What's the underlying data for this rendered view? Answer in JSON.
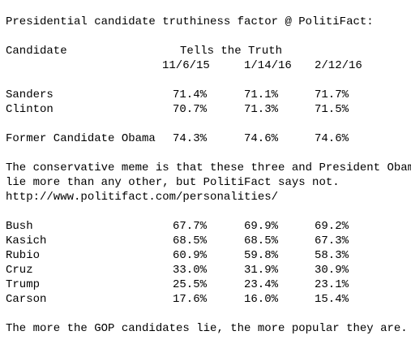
{
  "title": "Presidential candidate truthiness factor @ PolitiFact:",
  "table_header": {
    "candidate": "Candidate",
    "group": "Tells the Truth",
    "dates": [
      "11/6/15",
      "1/14/16",
      "2/12/16"
    ]
  },
  "current": [
    {
      "name": "Sanders",
      "values": [
        "71.4%",
        "71.1%",
        "71.7%"
      ]
    },
    {
      "name": "Clinton",
      "values": [
        "70.7%",
        "71.3%",
        "71.5%"
      ]
    }
  ],
  "former": [
    {
      "name": "Former Candidate Obama",
      "values": [
        "74.3%",
        "74.6%",
        "74.6%"
      ]
    }
  ],
  "note": [
    "The conservative meme is that these three and President Obama",
    "lie more than any other, but PolitiFact says not.",
    "http://www.politifact.com/personalities/"
  ],
  "gop": [
    {
      "name": "Bush",
      "values": [
        "67.7%",
        "69.9%",
        "69.2%"
      ]
    },
    {
      "name": "Kasich",
      "values": [
        "68.5%",
        "68.5%",
        "67.3%"
      ]
    },
    {
      "name": "Rubio",
      "values": [
        "60.9%",
        "59.8%",
        "58.3%"
      ]
    },
    {
      "name": "Cruz",
      "values": [
        "33.0%",
        "31.9%",
        "30.9%"
      ]
    },
    {
      "name": "Trump",
      "values": [
        "25.5%",
        "23.4%",
        "23.1%"
      ]
    },
    {
      "name": "Carson",
      "values": [
        "17.6%",
        "16.0%",
        "15.4%"
      ]
    }
  ],
  "conclusion": "The more the GOP candidates lie, the more popular they are."
}
